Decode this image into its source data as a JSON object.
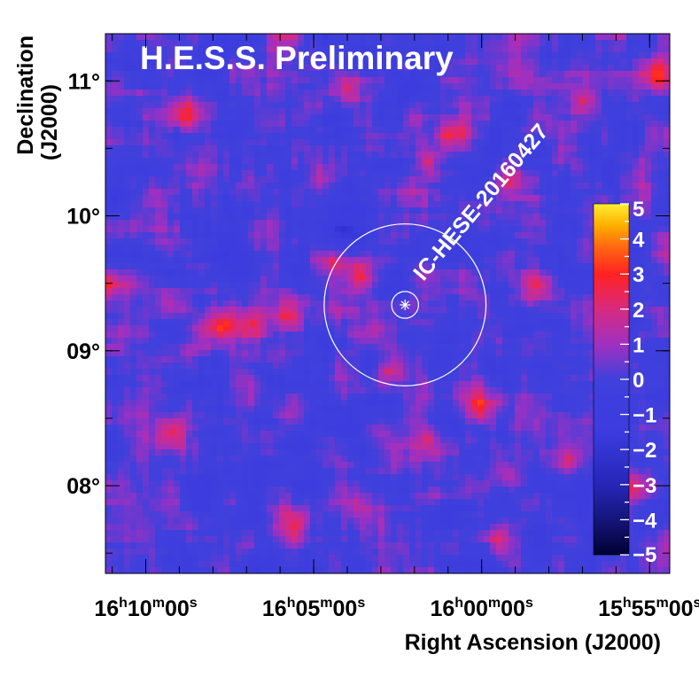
{
  "chart_data": {
    "type": "heatmap",
    "title": "H.E.S.S. Preliminary",
    "xlabel": "Right Ascension (J2000)",
    "ylabel_line1": "Declination",
    "ylabel_line2": "(J2000)",
    "x_unit": "deg RA",
    "xlim": [
      242.8,
      238.6
    ],
    "ylim": [
      7.35,
      11.35
    ],
    "xticks": [
      {
        "value": 242.5,
        "h": "16",
        "m": "10",
        "s": "00"
      },
      {
        "value": 241.25,
        "h": "16",
        "m": "05",
        "s": "00"
      },
      {
        "value": 240.0,
        "h": "16",
        "m": "00",
        "s": "00"
      },
      {
        "value": 238.75,
        "h": "15",
        "m": "55",
        "s": "00"
      }
    ],
    "yticks": [
      {
        "value": 8,
        "label": "08°"
      },
      {
        "value": 9,
        "label": "09°"
      },
      {
        "value": 10,
        "label": "10°"
      },
      {
        "value": 11,
        "label": "11°"
      }
    ],
    "colorbar": {
      "min": -5,
      "max": 5,
      "ticks": [
        "5",
        "4",
        "3",
        "2",
        "1",
        "0",
        "−1",
        "−2",
        "−3",
        "−4",
        "−5"
      ],
      "colors": [
        "#000033",
        "#15157a",
        "#2626b8",
        "#3b3be0",
        "#6633dd",
        "#a030c0",
        "#d82a80",
        "#ff2222",
        "#ff6a10",
        "#ffb000",
        "#ffee33"
      ]
    },
    "background_color": "#4040dc",
    "source": {
      "name": "IC-HESE-20160427",
      "ra": 240.57,
      "dec": 9.34,
      "inner_radius_deg": 0.06,
      "outer_radius_deg": 0.6
    },
    "hotspots": [
      {
        "ra": 242.83,
        "dec": 9.5,
        "sig": 2.6
      },
      {
        "ra": 241.9,
        "dec": 9.2,
        "sig": 2.7
      },
      {
        "ra": 241.7,
        "dec": 9.2,
        "sig": 2.4
      },
      {
        "ra": 241.1,
        "dec": 9.65,
        "sig": 2.2
      },
      {
        "ra": 240.9,
        "dec": 9.55,
        "sig": 2.4
      },
      {
        "ra": 240.25,
        "dec": 10.6,
        "sig": 2.6
      },
      {
        "ra": 240.4,
        "dec": 10.4,
        "sig": 2.0
      },
      {
        "ra": 239.8,
        "dec": 10.25,
        "sig": 2.1
      },
      {
        "ra": 240.0,
        "dec": 8.58,
        "sig": 2.5
      },
      {
        "ra": 240.4,
        "dec": 8.35,
        "sig": 2.0
      },
      {
        "ra": 239.35,
        "dec": 8.2,
        "sig": 2.2
      },
      {
        "ra": 238.95,
        "dec": 8.0,
        "sig": 2.4
      },
      {
        "ra": 241.4,
        "dec": 7.7,
        "sig": 2.0
      },
      {
        "ra": 238.7,
        "dec": 11.05,
        "sig": 2.6
      },
      {
        "ra": 239.25,
        "dec": 10.85,
        "sig": 2.3
      },
      {
        "ra": 242.2,
        "dec": 10.75,
        "sig": 2.0
      },
      {
        "ra": 241.45,
        "dec": 9.25,
        "sig": 2.2
      },
      {
        "ra": 240.7,
        "dec": 8.85,
        "sig": 2.1
      },
      {
        "ra": 239.6,
        "dec": 9.5,
        "sig": 2.0
      },
      {
        "ra": 242.3,
        "dec": 8.4,
        "sig": 1.9
      },
      {
        "ra": 239.9,
        "dec": 7.6,
        "sig": 2.0
      },
      {
        "ra": 241.0,
        "dec": 10.95,
        "sig": 1.9
      }
    ]
  }
}
